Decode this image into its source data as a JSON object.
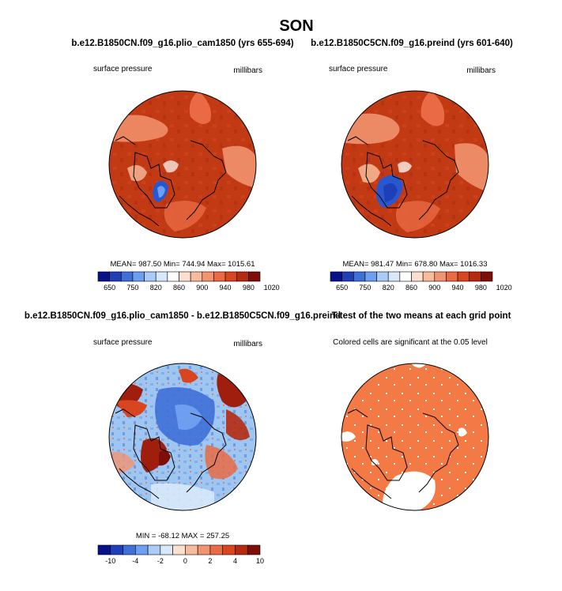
{
  "figure": {
    "title": "SON",
    "panels": [
      {
        "title": "b.e12.B1850CN.f09_g16.plio_cam1850 (yrs 655-694)",
        "left_label": "surface pressure",
        "right_label": "millibars",
        "stats_text": "MEAN= 987.50   Min= 744.94   Max= 1015.61",
        "colorbar_ticks": [
          "650",
          "750",
          "820",
          "860",
          "900",
          "940",
          "980",
          "1020"
        ],
        "base_color": "#C23A13"
      },
      {
        "title": "b.e12.B1850C5CN.f09_g16.preind (yrs 601-640)",
        "left_label": "surface pressure",
        "right_label": "millibars",
        "stats_text": "MEAN= 981.47   Min= 678.80   Max= 1016.33",
        "colorbar_ticks": [
          "650",
          "750",
          "820",
          "860",
          "900",
          "940",
          "980",
          "1020"
        ],
        "base_color": "#C23A13"
      },
      {
        "title": "b.e12.B1850CN.f09_g16.plio_cam1850 - b.e12.B1850C5CN.f09_g16.preind",
        "left_label": "surface pressure",
        "right_label": "millibars",
        "stats_text": "MIN = -68.12  MAX = 257.25",
        "colorbar_ticks": [
          "-10",
          "-4",
          "-2",
          "0",
          "2",
          "4",
          "10"
        ],
        "base_color": "#9EC6F0"
      },
      {
        "title": "T-test of the two means at each grid point",
        "left_label": "Colored cells are significant at the 0.05 level",
        "base_color": "#F47A45"
      }
    ],
    "colorbar_colors": [
      "#08108C",
      "#1F3FB8",
      "#3F6FD8",
      "#6E9EEF",
      "#A9CBF5",
      "#D8E8FA",
      "#FFFFFF",
      "#FCE0CF",
      "#F8BC9C",
      "#F29470",
      "#E96A45",
      "#D9451F",
      "#B52A10",
      "#7E0E08"
    ],
    "colorbar_colors_diff": [
      "#08108C",
      "#1F3FB8",
      "#3F6FD8",
      "#6E9EEF",
      "#A9CBF5",
      "#D8E8FA",
      "#FCE0CF",
      "#F8BC9C",
      "#F29470",
      "#E96A45",
      "#D9451F",
      "#B52A10",
      "#7E0E08"
    ],
    "accent_colors": {
      "deep_blue": "#2858D0",
      "dark_red": "#A01E0E"
    }
  },
  "chart_data": [
    {
      "type": "heatmap",
      "title": "b.e12.B1850CN.f09_g16.plio_cam1850 (yrs 655-694)",
      "variable": "surface pressure",
      "units": "millibars",
      "mean": 987.5,
      "min": 744.94,
      "max": 1015.61,
      "levels": [
        650,
        700,
        750,
        800,
        820,
        840,
        860,
        880,
        900,
        920,
        940,
        960,
        980,
        1000,
        1020
      ]
    },
    {
      "type": "heatmap",
      "title": "b.e12.B1850C5CN.f09_g16.preind (yrs 601-640)",
      "variable": "surface pressure",
      "units": "millibars",
      "mean": 981.47,
      "min": 678.8,
      "max": 1016.33,
      "levels": [
        650,
        700,
        750,
        800,
        820,
        840,
        860,
        880,
        900,
        920,
        940,
        960,
        980,
        1000,
        1020
      ]
    },
    {
      "type": "heatmap",
      "title": "b.e12.B1850CN.f09_g16.plio_cam1850 - b.e12.B1850C5CN.f09_g16.preind",
      "variable": "surface pressure",
      "units": "millibars",
      "min": -68.12,
      "max": 257.25,
      "levels": [
        -10,
        -6,
        -4,
        -3,
        -2,
        -1,
        0,
        1,
        2,
        3,
        4,
        6,
        10
      ]
    },
    {
      "type": "heatmap",
      "title": "T-test of the two means at each grid point",
      "note": "Colored cells are significant at the 0.05 level",
      "significance_level": 0.05
    }
  ]
}
